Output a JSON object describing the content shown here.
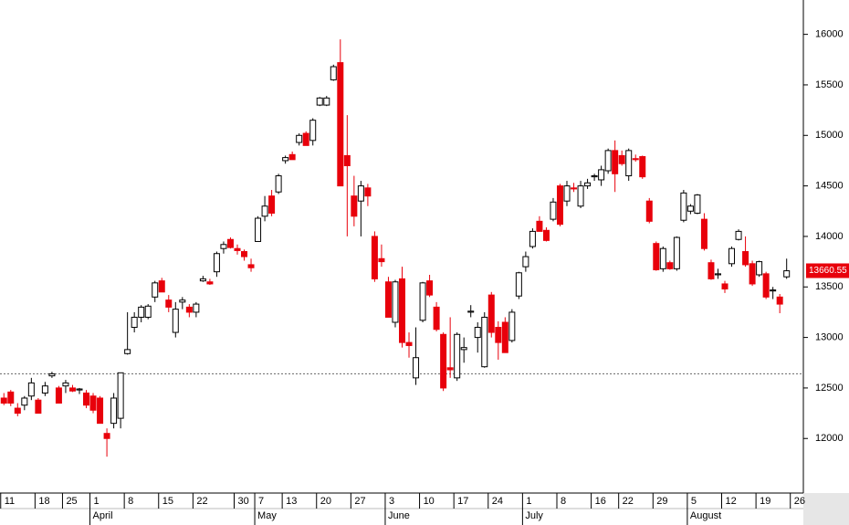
{
  "chart_data": {
    "type": "candlestick",
    "up_color": "#ffffff",
    "down_color": "#e8000b",
    "open": [
      12400,
      12460,
      12300,
      12330,
      12420,
      12380,
      12450,
      12620,
      12500,
      12520,
      12500,
      12480,
      12450,
      12420,
      12400,
      12050,
      12150,
      12200,
      12840,
      13100,
      13200,
      13200,
      13400,
      13560,
      13370,
      13050,
      13350,
      13300,
      13250,
      13560,
      13550,
      13650,
      13880,
      13970,
      13880,
      13850,
      13720,
      13950,
      14200,
      14400,
      14440,
      14750,
      14810,
      14930,
      15020,
      14950,
      15300,
      15300,
      15550,
      15720,
      14800,
      14400,
      14350,
      14480,
      14000,
      13780,
      13550,
      13150,
      13580,
      12950,
      12600,
      13170,
      13560,
      13300,
      13030,
      12700,
      12600,
      12880,
      13250,
      13000,
      12710,
      13420,
      13100,
      13150,
      12970,
      13410,
      13700,
      13900,
      14150,
      14060,
      14170,
      14500,
      14350,
      14480,
      14300,
      14500,
      14590,
      14560,
      14650,
      14850,
      14800,
      14600,
      14770,
      14790,
      14350,
      13930,
      13680,
      13740,
      13680,
      14160,
      14250,
      14230,
      14170,
      13740,
      13620,
      13530,
      13730,
      13970,
      13850,
      13730,
      13620,
      13630,
      13460,
      13400,
      13600
    ],
    "high": [
      12450,
      12480,
      12350,
      12420,
      12600,
      12400,
      12560,
      12660,
      12520,
      12580,
      12530,
      12500,
      12480,
      12450,
      12420,
      12100,
      12450,
      12650,
      13250,
      13250,
      13320,
      13330,
      13560,
      13590,
      13420,
      13350,
      13400,
      13330,
      13350,
      13610,
      13580,
      13850,
      13950,
      13990,
      13920,
      13870,
      13780,
      14200,
      14400,
      14460,
      14620,
      14800,
      14840,
      15020,
      15040,
      15170,
      15380,
      15390,
      15700,
      15950,
      15200,
      14600,
      14550,
      14520,
      14050,
      13920,
      13600,
      13570,
      13700,
      13050,
      13100,
      13550,
      13620,
      13350,
      13050,
      13200,
      13050,
      13000,
      13320,
      13150,
      13250,
      13450,
      13160,
      13200,
      13280,
      13650,
      13850,
      14080,
      14200,
      14090,
      14380,
      14520,
      14550,
      14530,
      14550,
      14570,
      14620,
      14700,
      14870,
      14950,
      14850,
      14870,
      14810,
      14800,
      14380,
      13950,
      13900,
      13760,
      14000,
      14460,
      14320,
      14420,
      14230,
      13770,
      13680,
      13560,
      13900,
      14070,
      14000,
      13760,
      13760,
      13650,
      13500,
      13430,
      13780
    ],
    "low": [
      12330,
      12320,
      12220,
      12280,
      12380,
      12250,
      12420,
      12600,
      12350,
      12450,
      12460,
      12440,
      12300,
      12250,
      12150,
      11820,
      12100,
      12100,
      12830,
      13050,
      13150,
      13180,
      13350,
      13450,
      13250,
      13000,
      13280,
      13200,
      13200,
      13550,
      13520,
      13600,
      13830,
      13880,
      13820,
      13760,
      13650,
      13950,
      14150,
      14200,
      14420,
      14720,
      14760,
      14900,
      14900,
      14900,
      15290,
      15290,
      15540,
      14500,
      14000,
      14100,
      14000,
      14300,
      13550,
      13700,
      13200,
      13100,
      12900,
      12800,
      12530,
      13150,
      13400,
      13060,
      12470,
      12600,
      12570,
      12750,
      13200,
      12850,
      12700,
      13000,
      12780,
      12850,
      12950,
      13380,
      13650,
      13880,
      14050,
      13950,
      14150,
      14100,
      14300,
      14440,
      14280,
      14470,
      14550,
      14500,
      14620,
      14440,
      14700,
      14550,
      14740,
      14570,
      14130,
      13660,
      13650,
      13670,
      13660,
      14140,
      14220,
      14220,
      13860,
      13570,
      13580,
      13440,
      13700,
      13960,
      13700,
      13510,
      13600,
      13380,
      13380,
      13240,
      13580
    ],
    "close": [
      12350,
      12350,
      12250,
      12400,
      12550,
      12250,
      12520,
      12640,
      12350,
      12550,
      12470,
      12490,
      12330,
      12280,
      12150,
      12000,
      12400,
      12650,
      12880,
      13200,
      13300,
      13310,
      13540,
      13450,
      13300,
      13280,
      13370,
      13250,
      13330,
      13580,
      13530,
      13830,
      13920,
      13890,
      13860,
      13800,
      13690,
      14180,
      14300,
      14230,
      14600,
      14780,
      14760,
      15000,
      14900,
      15150,
      15370,
      15370,
      15680,
      14500,
      14700,
      14200,
      14500,
      14400,
      13580,
      13750,
      13200,
      13550,
      12950,
      12920,
      12800,
      13540,
      13420,
      13080,
      12500,
      12680,
      13030,
      12900,
      13260,
      13100,
      13200,
      13050,
      12950,
      12850,
      13250,
      13640,
      13800,
      14050,
      14050,
      13960,
      14340,
      14120,
      14500,
      14470,
      14500,
      14530,
      14600,
      14660,
      14850,
      14620,
      14720,
      14850,
      14760,
      14590,
      14150,
      13670,
      13880,
      13680,
      13990,
      14430,
      14300,
      14410,
      13880,
      13580,
      13630,
      13480,
      13880,
      14050,
      13720,
      13530,
      13750,
      13400,
      13470,
      13330,
      13660
    ],
    "xlim": [
      -0.5,
      116.5
    ],
    "xticks": [
      {
        "value": 0,
        "label": "11"
      },
      {
        "value": 5,
        "label": "18"
      },
      {
        "value": 9,
        "label": "25"
      },
      {
        "value": 13,
        "label": "1"
      },
      {
        "value": 18,
        "label": "8"
      },
      {
        "value": 23,
        "label": "15"
      },
      {
        "value": 28,
        "label": "22"
      },
      {
        "value": 34,
        "label": "30"
      },
      {
        "value": 37,
        "label": "7"
      },
      {
        "value": 41,
        "label": "13"
      },
      {
        "value": 46,
        "label": "20"
      },
      {
        "value": 51,
        "label": "27"
      },
      {
        "value": 56,
        "label": "3"
      },
      {
        "value": 61,
        "label": "10"
      },
      {
        "value": 66,
        "label": "17"
      },
      {
        "value": 71,
        "label": "24"
      },
      {
        "value": 76,
        "label": "1"
      },
      {
        "value": 81,
        "label": "8"
      },
      {
        "value": 86,
        "label": "16"
      },
      {
        "value": 90,
        "label": "22"
      },
      {
        "value": 95,
        "label": "29"
      },
      {
        "value": 100,
        "label": "5"
      },
      {
        "value": 105,
        "label": "12"
      },
      {
        "value": 110,
        "label": "19"
      },
      {
        "value": 115,
        "label": "26"
      }
    ],
    "month_ticks": [
      {
        "value": 13,
        "label": "April"
      },
      {
        "value": 37,
        "label": "May"
      },
      {
        "value": 56,
        "label": "June"
      },
      {
        "value": 76,
        "label": "July"
      },
      {
        "value": 100,
        "label": "August"
      }
    ],
    "ylim": [
      11460,
      16340
    ],
    "yticks": [
      12000,
      12500,
      13000,
      13500,
      14000,
      14500,
      15000,
      15500,
      16000
    ],
    "reference_line": 12640,
    "last_price": 13660.55
  }
}
